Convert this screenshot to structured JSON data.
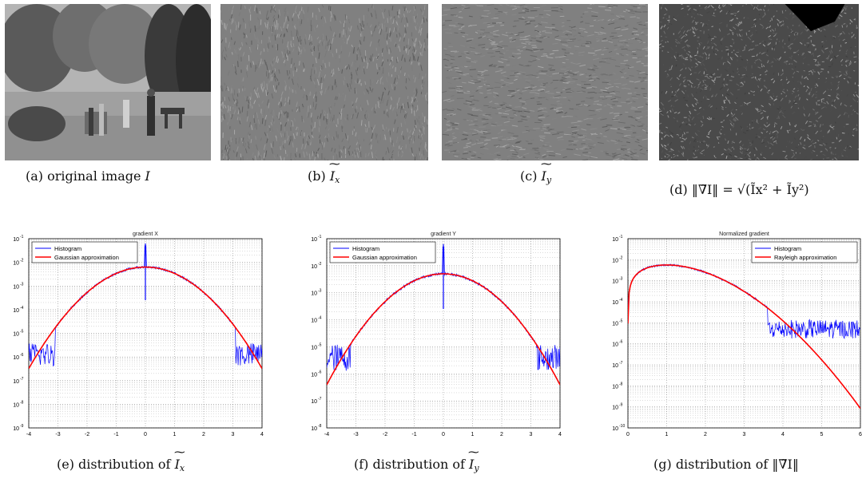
{
  "captions": {
    "a": {
      "prefix": "(a) original image ",
      "var": "I"
    },
    "b": {
      "prefix": "(b) ",
      "var": "I",
      "sub": "x"
    },
    "c": {
      "prefix": "(c) ",
      "var": "I",
      "sub": "y"
    },
    "d": {
      "prefix": "(d) ",
      "formula": "‖∇̃I‖ = √(Ĩx² + Ĩy²)"
    },
    "e": {
      "prefix": "(e) distribution of ",
      "var": "I",
      "sub": "x"
    },
    "f": {
      "prefix": "(f) distribution of ",
      "var": "I",
      "sub": "y"
    },
    "g": {
      "prefix": "(g) distribution of ",
      "formula": "‖∇̃I‖"
    }
  },
  "colors": {
    "histogram": "#0000ff",
    "approximation": "#ff0000",
    "gray_mid": "#808080"
  },
  "chart_data": [
    {
      "type": "line",
      "title": "gradient X",
      "xlim": [
        -4,
        4
      ],
      "ylim_log10": [
        -9,
        -1
      ],
      "yscale": "log",
      "xticks": [
        "-4",
        "-3",
        "-2",
        "-1",
        "0",
        "1",
        "2",
        "3",
        "4"
      ],
      "yticks": [
        "10",
        "10",
        "10",
        "10",
        "10",
        "10",
        "10",
        "10",
        "10"
      ],
      "ytick_exponents": [
        "-1",
        "-2",
        "-3",
        "-4",
        "-5",
        "-6",
        "-7",
        "-8",
        "-9"
      ],
      "grid": true,
      "legend": {
        "placement": "top-left",
        "entries": [
          "Histogram",
          "Gaussian approximation"
        ]
      },
      "series": [
        {
          "name": "Histogram",
          "kind": "gaussian-hist",
          "sigma": 0.9,
          "peak_log10": -2.2,
          "cut": [
            -3.1,
            3.1
          ],
          "floor_log10": -6.1
        },
        {
          "name": "Gaussian approximation",
          "kind": "gaussian",
          "sigma": 0.9,
          "peak_log10": -2.2
        }
      ]
    },
    {
      "type": "line",
      "title": "gradient Y",
      "xlim": [
        -4,
        4
      ],
      "ylim_log10": [
        -8,
        -1
      ],
      "yscale": "log",
      "xticks": [
        "-4",
        "-3",
        "-2",
        "-1",
        "0",
        "1",
        "2",
        "3",
        "4"
      ],
      "yticks": [
        "10",
        "10",
        "10",
        "10",
        "10",
        "10",
        "10",
        "10"
      ],
      "ytick_exponents": [
        "-1",
        "-2",
        "-3",
        "-4",
        "-5",
        "-6",
        "-7",
        "-8"
      ],
      "grid": true,
      "legend": {
        "placement": "top-left",
        "entries": [
          "Histogram",
          "Gaussian approximation"
        ]
      },
      "series": [
        {
          "name": "Histogram",
          "kind": "gaussian-hist",
          "sigma": 0.92,
          "peak_log10": -2.3,
          "cut": [
            -3.2,
            3.2
          ],
          "floor_log10": -5.6
        },
        {
          "name": "Gaussian approximation",
          "kind": "gaussian",
          "sigma": 0.92,
          "peak_log10": -2.3
        }
      ]
    },
    {
      "type": "line",
      "title": "Normalized gradient",
      "xlim": [
        0,
        6
      ],
      "ylim_log10": [
        -10,
        -1
      ],
      "yscale": "log",
      "xticks": [
        "0",
        "1",
        "2",
        "3",
        "4",
        "5",
        "6"
      ],
      "yticks": [
        "10",
        "10",
        "10",
        "10",
        "10",
        "10",
        "10",
        "10",
        "10",
        "10"
      ],
      "ytick_exponents": [
        "-1",
        "-2",
        "-3",
        "-4",
        "-5",
        "-6",
        "-7",
        "-8",
        "-9",
        "-10"
      ],
      "grid": true,
      "legend": {
        "placement": "top-right",
        "entries": [
          "Histogram",
          "Rayleigh approximation"
        ]
      },
      "series": [
        {
          "name": "Histogram",
          "kind": "rayleigh-hist",
          "sigma": 1.0,
          "peak_log10": -2.25,
          "floor_log10": -5.3
        },
        {
          "name": "Rayleigh approximation",
          "kind": "rayleigh",
          "sigma": 1.0,
          "peak_log10": -2.25
        }
      ]
    }
  ]
}
